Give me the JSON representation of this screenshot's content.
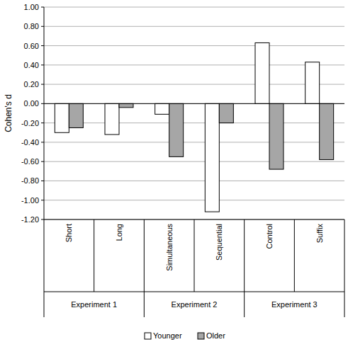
{
  "chart_data": {
    "type": "bar",
    "y_label": "Cohen's d",
    "categories": [
      "Short",
      "Long",
      "Simultaneous",
      "Sequential",
      "Control",
      "Suffix"
    ],
    "category_groups": [
      "Experiment 1",
      "Experiment 1",
      "Experiment 2",
      "Experiment 2",
      "Experiment 3",
      "Experiment 3"
    ],
    "series": [
      {
        "name": "Younger",
        "color": "#ffffff",
        "values": [
          -0.3,
          -0.32,
          -0.11,
          -1.12,
          0.63,
          0.43
        ]
      },
      {
        "name": "Older",
        "color": "#a6a6a6",
        "values": [
          -0.25,
          -0.04,
          -0.55,
          -0.2,
          -0.68,
          -0.58
        ]
      }
    ],
    "ylim": [
      -1.2,
      1.0
    ],
    "yticks": [
      {
        "value": -1.2,
        "label": "-1.20"
      },
      {
        "value": -1.0,
        "label": "-1.00"
      },
      {
        "value": -0.8,
        "label": "-0.80"
      },
      {
        "value": -0.6,
        "label": "-0.60"
      },
      {
        "value": -0.4,
        "label": "-0.40"
      },
      {
        "value": -0.2,
        "label": "-0.20"
      },
      {
        "value": 0,
        "label": "0.00"
      },
      {
        "value": 0.2,
        "label": "0.20"
      },
      {
        "value": 0.4,
        "label": "0.40"
      },
      {
        "value": 0.6,
        "label": "0.60"
      },
      {
        "value": 0.8,
        "label": "0.80"
      },
      {
        "value": 1.0,
        "label": "1.00"
      }
    ],
    "grid": true,
    "legend": "bottom"
  }
}
